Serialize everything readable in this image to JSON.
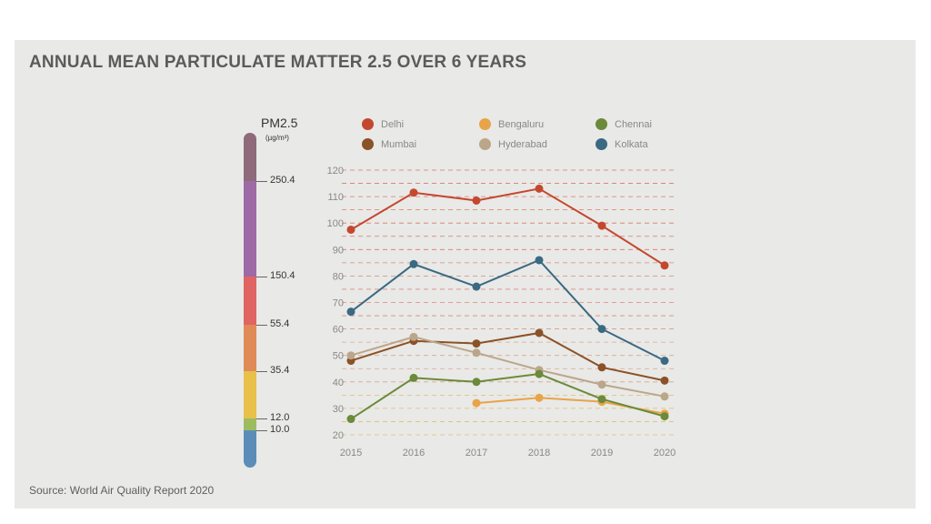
{
  "title": "ANNUAL MEAN PARTICULATE MATTER 2.5 OVER 6 YEARS",
  "source": "Source: World Air Quality Report 2020",
  "scale": {
    "title": "PM2.5",
    "unit": "(µg/m³)",
    "labels": [
      "250.4",
      "150.4",
      "55.4",
      "35.4",
      "12.0",
      "10.0"
    ],
    "bands": [
      {
        "color": "#8e6a7a"
      },
      {
        "color": "#9d6aa6"
      },
      {
        "color": "#e06462"
      },
      {
        "color": "#e08a58"
      },
      {
        "color": "#e8c04a"
      },
      {
        "color": "#9bbd60"
      },
      {
        "color": "#5b8db8"
      }
    ]
  },
  "chart_data": {
    "type": "line",
    "x": [
      "2015",
      "2016",
      "2017",
      "2018",
      "2019",
      "2020"
    ],
    "ylim": [
      20,
      120
    ],
    "yticks": [
      "20",
      "30",
      "40",
      "50",
      "60",
      "70",
      "80",
      "90",
      "100",
      "110",
      "120"
    ],
    "grid": true,
    "legend_position": "top",
    "series": [
      {
        "name": "Delhi",
        "color": "#c4482f",
        "values": [
          97.5,
          111.5,
          108.5,
          113,
          99,
          84
        ]
      },
      {
        "name": "Mumbai",
        "color": "#8b5227",
        "values": [
          48,
          55.5,
          54.5,
          58.5,
          45.5,
          40.5
        ]
      },
      {
        "name": "Bengaluru",
        "color": "#e8a448",
        "values": [
          null,
          null,
          32,
          34,
          32.5,
          28
        ]
      },
      {
        "name": "Hyderabad",
        "color": "#bba68a",
        "values": [
          50,
          57,
          51,
          44.5,
          39,
          34.5
        ]
      },
      {
        "name": "Chennai",
        "color": "#6b8a3a",
        "values": [
          26,
          41.5,
          40,
          43,
          33.5,
          27
        ]
      },
      {
        "name": "Kolkata",
        "color": "#3a6a82",
        "values": [
          66.5,
          84.5,
          76,
          86,
          60,
          48
        ]
      }
    ]
  }
}
